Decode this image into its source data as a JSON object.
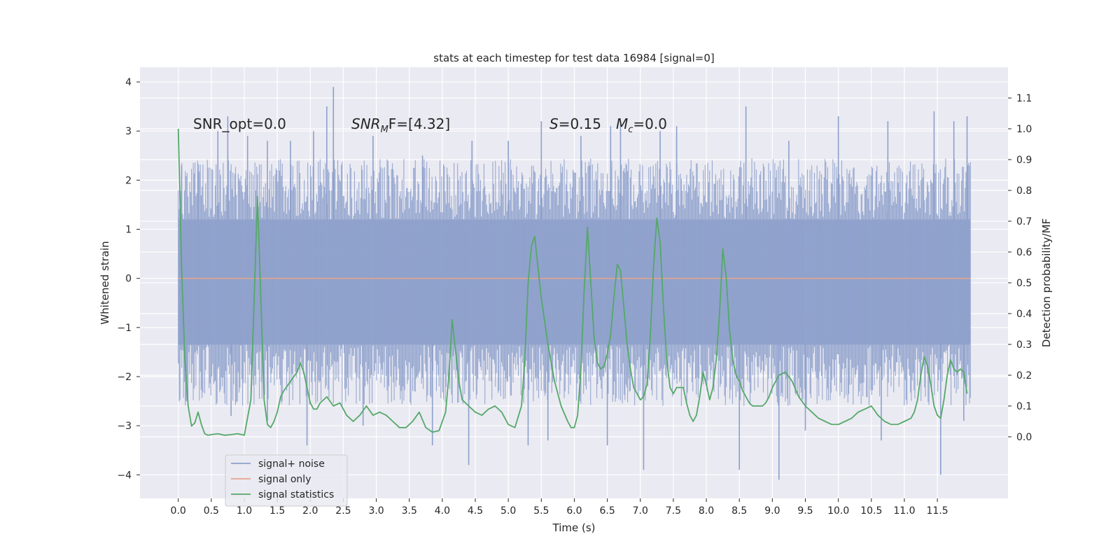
{
  "chart_data": {
    "type": "line",
    "title": "stats at each timestep for test data 16984 [signal=0]",
    "xlabel": "Time (s)",
    "ylabel_left": "Whitened strain",
    "ylabel_right": "Detection probability/MF",
    "xlim": [
      -0.58,
      12.57
    ],
    "ylim_left": [
      -4.48,
      4.3
    ],
    "ylim_right": [
      -0.2,
      1.2
    ],
    "x_ticks": [
      0.0,
      0.5,
      1.0,
      1.5,
      2.0,
      2.5,
      3.0,
      3.5,
      4.0,
      4.5,
      5.0,
      5.5,
      6.0,
      6.5,
      7.0,
      7.5,
      8.0,
      8.5,
      9.0,
      9.5,
      10.0,
      10.5,
      11.0,
      11.5
    ],
    "x_tick_labels": [
      "0.0",
      "0.5",
      "1.0",
      "1.5",
      "2.0",
      "2.5",
      "3.0",
      "3.5",
      "4.0",
      "4.5",
      "5.0",
      "5.5",
      "6.0",
      "6.5",
      "7.0",
      "7.5",
      "8.0",
      "8.5",
      "9.0",
      "9.5",
      "10.0",
      "10.5",
      "11.0",
      "11.5"
    ],
    "y_left_ticks": [
      -4,
      -3,
      -2,
      -1,
      0,
      1,
      2,
      3,
      4
    ],
    "y_left_tick_labels": [
      "−4",
      "−3",
      "−2",
      "−1",
      "0",
      "1",
      "2",
      "3",
      "4"
    ],
    "y_right_ticks": [
      0.0,
      0.1,
      0.2,
      0.3,
      0.4,
      0.5,
      0.6,
      0.7,
      0.8,
      0.9,
      1.0,
      1.1
    ],
    "y_right_tick_labels": [
      "0.0",
      "0.1",
      "0.2",
      "0.3",
      "0.4",
      "0.5",
      "0.6",
      "0.7",
      "0.8",
      "0.9",
      "1.0",
      "1.1"
    ],
    "grid": true,
    "legend_position": "lower-left",
    "annotations": [
      "SNR_opt=0.0",
      "F=[4.32]",
      "=0.15",
      "=0.0"
    ],
    "annotation_parts": {
      "snr_mf_base": "SNR",
      "snr_mf_sub": "M",
      "s_symbol": "S",
      "mc_base": "M",
      "mc_sub": "c"
    },
    "series": [
      {
        "name": "signal+ noise",
        "color": "#8da0cb",
        "axis": "left",
        "description_values": {
          "x_range": [
            0.0,
            12.0
          ],
          "dense_band": [
            -1.35,
            1.2
          ],
          "max_spike": 3.9,
          "min_spike": -4.1
        },
        "spikes": [
          [
            0.05,
            2.3
          ],
          [
            0.3,
            2.2
          ],
          [
            0.6,
            3.0
          ],
          [
            0.75,
            3.3
          ],
          [
            1.05,
            2.9
          ],
          [
            1.35,
            2.8
          ],
          [
            1.7,
            2.8
          ],
          [
            2.05,
            3.0
          ],
          [
            2.25,
            3.5
          ],
          [
            2.35,
            3.9
          ],
          [
            2.95,
            2.9
          ],
          [
            3.7,
            2.5
          ],
          [
            4.45,
            2.8
          ],
          [
            5.0,
            2.8
          ],
          [
            5.5,
            3.2
          ],
          [
            6.1,
            2.9
          ],
          [
            6.55,
            3.1
          ],
          [
            6.7,
            3.2
          ],
          [
            7.3,
            3.0
          ],
          [
            7.55,
            3.1
          ],
          [
            8.6,
            3.5
          ],
          [
            9.25,
            2.8
          ],
          [
            10.0,
            3.3
          ],
          [
            10.75,
            3.2
          ],
          [
            11.45,
            3.4
          ],
          [
            11.75,
            3.2
          ],
          [
            11.95,
            3.3
          ],
          [
            0.12,
            -2.5
          ],
          [
            0.8,
            -2.8
          ],
          [
            1.35,
            -2.9
          ],
          [
            1.95,
            -3.4
          ],
          [
            2.8,
            -3.0
          ],
          [
            3.85,
            -3.4
          ],
          [
            4.4,
            -3.8
          ],
          [
            5.3,
            -3.4
          ],
          [
            5.6,
            -3.3
          ],
          [
            6.5,
            -3.4
          ],
          [
            7.05,
            -3.9
          ],
          [
            8.5,
            -3.9
          ],
          [
            9.1,
            -4.1
          ],
          [
            9.5,
            -3.1
          ],
          [
            10.65,
            -3.3
          ],
          [
            11.55,
            -4.0
          ],
          [
            11.9,
            -2.9
          ]
        ]
      },
      {
        "name": "signal only",
        "color": "#e5a58e",
        "axis": "left",
        "x": [
          0.0,
          12.0
        ],
        "y": [
          0.0,
          0.0
        ]
      },
      {
        "name": "signal statistics",
        "color": "#55a868",
        "axis": "right",
        "x": [
          0.0,
          0.05,
          0.1,
          0.15,
          0.2,
          0.25,
          0.3,
          0.35,
          0.4,
          0.45,
          0.5,
          0.6,
          0.7,
          0.8,
          0.9,
          1.0,
          1.1,
          1.15,
          1.2,
          1.25,
          1.3,
          1.35,
          1.4,
          1.45,
          1.5,
          1.55,
          1.6,
          1.7,
          1.8,
          1.85,
          1.9,
          1.95,
          2.0,
          2.05,
          2.1,
          2.15,
          2.25,
          2.35,
          2.45,
          2.55,
          2.65,
          2.75,
          2.85,
          2.95,
          3.05,
          3.15,
          3.25,
          3.35,
          3.45,
          3.55,
          3.65,
          3.75,
          3.85,
          3.95,
          4.05,
          4.1,
          4.15,
          4.2,
          4.25,
          4.3,
          4.4,
          4.5,
          4.6,
          4.7,
          4.8,
          4.9,
          5.0,
          5.1,
          5.2,
          5.25,
          5.3,
          5.35,
          5.4,
          5.5,
          5.6,
          5.7,
          5.8,
          5.9,
          5.95,
          6.0,
          6.05,
          6.1,
          6.15,
          6.2,
          6.25,
          6.3,
          6.35,
          6.4,
          6.45,
          6.5,
          6.55,
          6.6,
          6.65,
          6.7,
          6.75,
          6.8,
          6.85,
          6.9,
          6.95,
          7.0,
          7.05,
          7.1,
          7.15,
          7.2,
          7.25,
          7.3,
          7.35,
          7.4,
          7.45,
          7.5,
          7.55,
          7.6,
          7.65,
          7.7,
          7.75,
          7.8,
          7.85,
          7.9,
          7.95,
          8.0,
          8.05,
          8.1,
          8.15,
          8.2,
          8.25,
          8.3,
          8.35,
          8.4,
          8.45,
          8.5,
          8.55,
          8.6,
          8.65,
          8.7,
          8.75,
          8.8,
          8.85,
          8.9,
          8.95,
          9.0,
          9.1,
          9.2,
          9.3,
          9.4,
          9.5,
          9.6,
          9.7,
          9.8,
          9.9,
          10.0,
          10.1,
          10.2,
          10.3,
          10.4,
          10.5,
          10.6,
          10.7,
          10.8,
          10.9,
          11.0,
          11.1,
          11.15,
          11.2,
          11.25,
          11.3,
          11.35,
          11.4,
          11.45,
          11.5,
          11.55,
          11.6,
          11.65,
          11.7,
          11.75,
          11.8,
          11.85,
          11.9,
          11.95
        ],
        "y": [
          1.0,
          0.55,
          0.25,
          0.1,
          0.035,
          0.045,
          0.08,
          0.04,
          0.01,
          0.005,
          0.007,
          0.01,
          0.005,
          0.007,
          0.01,
          0.005,
          0.12,
          0.45,
          0.78,
          0.45,
          0.12,
          0.04,
          0.03,
          0.05,
          0.08,
          0.13,
          0.15,
          0.18,
          0.21,
          0.24,
          0.21,
          0.16,
          0.11,
          0.09,
          0.09,
          0.11,
          0.13,
          0.1,
          0.11,
          0.07,
          0.05,
          0.07,
          0.1,
          0.07,
          0.08,
          0.07,
          0.05,
          0.03,
          0.03,
          0.05,
          0.08,
          0.03,
          0.015,
          0.02,
          0.08,
          0.2,
          0.38,
          0.28,
          0.18,
          0.12,
          0.1,
          0.08,
          0.07,
          0.09,
          0.1,
          0.08,
          0.04,
          0.03,
          0.1,
          0.25,
          0.5,
          0.62,
          0.65,
          0.45,
          0.3,
          0.18,
          0.1,
          0.05,
          0.03,
          0.03,
          0.07,
          0.22,
          0.48,
          0.68,
          0.5,
          0.32,
          0.24,
          0.22,
          0.23,
          0.27,
          0.33,
          0.45,
          0.56,
          0.54,
          0.42,
          0.3,
          0.22,
          0.16,
          0.14,
          0.12,
          0.13,
          0.17,
          0.32,
          0.55,
          0.71,
          0.63,
          0.42,
          0.25,
          0.16,
          0.14,
          0.16,
          0.16,
          0.16,
          0.11,
          0.07,
          0.05,
          0.07,
          0.13,
          0.21,
          0.17,
          0.12,
          0.16,
          0.25,
          0.4,
          0.61,
          0.52,
          0.35,
          0.25,
          0.2,
          0.18,
          0.15,
          0.13,
          0.11,
          0.1,
          0.1,
          0.1,
          0.1,
          0.11,
          0.13,
          0.16,
          0.2,
          0.21,
          0.18,
          0.13,
          0.1,
          0.08,
          0.06,
          0.05,
          0.04,
          0.04,
          0.05,
          0.06,
          0.08,
          0.09,
          0.1,
          0.07,
          0.05,
          0.04,
          0.04,
          0.05,
          0.06,
          0.08,
          0.12,
          0.2,
          0.26,
          0.23,
          0.17,
          0.1,
          0.07,
          0.06,
          0.12,
          0.2,
          0.25,
          0.22,
          0.21,
          0.22,
          0.21,
          0.14
        ]
      }
    ]
  }
}
